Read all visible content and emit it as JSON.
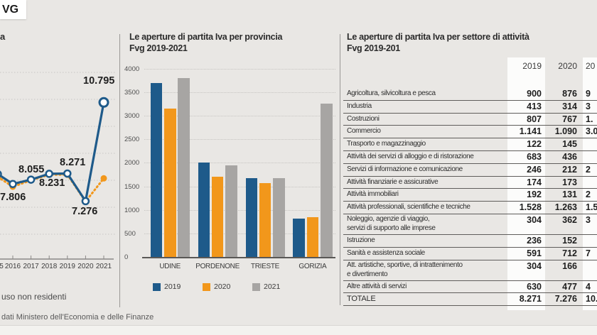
{
  "badge": "VG",
  "chart_data": [
    {
      "type": "line",
      "title_fragment": "a",
      "x_tick_labels": [
        "5",
        "2016",
        "2017",
        "2018",
        "2019",
        "2020",
        "2021"
      ],
      "ylim": [
        6500,
        11200
      ],
      "grid": true,
      "series": [
        {
          "name": "serie-blu-continua",
          "color": "#1e5a8a",
          "style": "solid",
          "values": [
            8250,
            7900,
            8055,
            8260,
            8271,
            7290,
            10795
          ]
        },
        {
          "name": "serie-arancione-tratteggiata",
          "color": "#f2971b",
          "style": "dashed",
          "values": [
            8150,
            7806,
            8030,
            8231,
            8230,
            7276,
            8100
          ]
        }
      ],
      "point_labels": [
        {
          "text": "7.806",
          "x": 0,
          "y": 270
        },
        {
          "text": "8.055",
          "x": 26,
          "y": 231
        },
        {
          "text": "8.231",
          "x": 55,
          "y": 250
        },
        {
          "text": "8.271",
          "x": 84,
          "y": 221
        },
        {
          "text": "7.276",
          "x": 101,
          "y": 290
        },
        {
          "text": "10.795",
          "x": 117,
          "y": 106
        }
      ],
      "footnote": "uso non residenti",
      "source": "dati Ministero dell'Economia e delle Finanze"
    },
    {
      "type": "bar",
      "title_line1": "Le aperture di partita Iva per provincia",
      "title_line2": "Fvg 2019-2021",
      "categories": [
        "UDINE",
        "PORDENONE",
        "TRIESTE",
        "GORIZIA"
      ],
      "series": [
        {
          "name": "2019",
          "color": "#1e5a8a",
          "values": [
            3700,
            2000,
            1680,
            820
          ]
        },
        {
          "name": "2020",
          "color": "#f2971b",
          "values": [
            3150,
            1700,
            1570,
            850
          ]
        },
        {
          "name": "2021",
          "color": "#a7a5a3",
          "values": [
            3800,
            1950,
            1680,
            3250
          ]
        }
      ],
      "ylim": [
        0,
        4000
      ],
      "ytick_step": 500,
      "legend": [
        "2019",
        "2020",
        "2021"
      ],
      "legend_position": "bottom"
    },
    {
      "type": "table",
      "title_line1": "Le aperture di partita Iva per settore di attività",
      "title_line2": "Fvg 2019-201",
      "columns": [
        "2019",
        "2020",
        "20"
      ],
      "rows": [
        {
          "label": "Agricoltura, silvicoltura e pesca",
          "v2019": "900",
          "v2020": "876",
          "v2021_partial": "9"
        },
        {
          "label": "Industria",
          "v2019": "413",
          "v2020": "314",
          "v2021_partial": "3"
        },
        {
          "label": "Costruzioni",
          "v2019": "807",
          "v2020": "767",
          "v2021_partial": "1."
        },
        {
          "label": "Commercio",
          "v2019": "1.141",
          "v2020": "1.090",
          "v2021_partial": "3.0"
        },
        {
          "label": "Trasporto e magazzinaggio",
          "v2019": "122",
          "v2020": "145",
          "v2021_partial": ""
        },
        {
          "label": "Attività dei servizi di alloggio e di ristorazione",
          "v2019": "683",
          "v2020": "436",
          "v2021_partial": ""
        },
        {
          "label": "Servizi di informazione e comunicazione",
          "v2019": "246",
          "v2020": "212",
          "v2021_partial": "2"
        },
        {
          "label": "Attività finanziarie e assicurative",
          "v2019": "174",
          "v2020": "173",
          "v2021_partial": ""
        },
        {
          "label": "Attività immobiliari",
          "v2019": "192",
          "v2020": "131",
          "v2021_partial": "2"
        },
        {
          "label": "Attività professionali, scientifiche e tecniche",
          "v2019": "1.528",
          "v2020": "1.263",
          "v2021_partial": "1.5"
        },
        {
          "label": "Noleggio, agenzie di viaggio,",
          "label2": "servizi di supporto alle imprese",
          "v2019": "304",
          "v2020": "362",
          "v2021_partial": "3"
        },
        {
          "label": "Istruzione",
          "v2019": "236",
          "v2020": "152",
          "v2021_partial": ""
        },
        {
          "label": "Sanità e assistenza sociale",
          "v2019": "591",
          "v2020": "712",
          "v2021_partial": "7"
        },
        {
          "label": "Att. artistiche, sportive, di intrattenimento",
          "label2": "e divertimento",
          "v2019": "304",
          "v2020": "166",
          "v2021_partial": ""
        },
        {
          "label": "Altre attività di servizi",
          "v2019": "630",
          "v2020": "477",
          "v2021_partial": "4"
        },
        {
          "label": "TOTALE",
          "v2019": "8.271",
          "v2020": "7.276",
          "v2021_partial": "10.",
          "is_total": true
        }
      ]
    }
  ]
}
